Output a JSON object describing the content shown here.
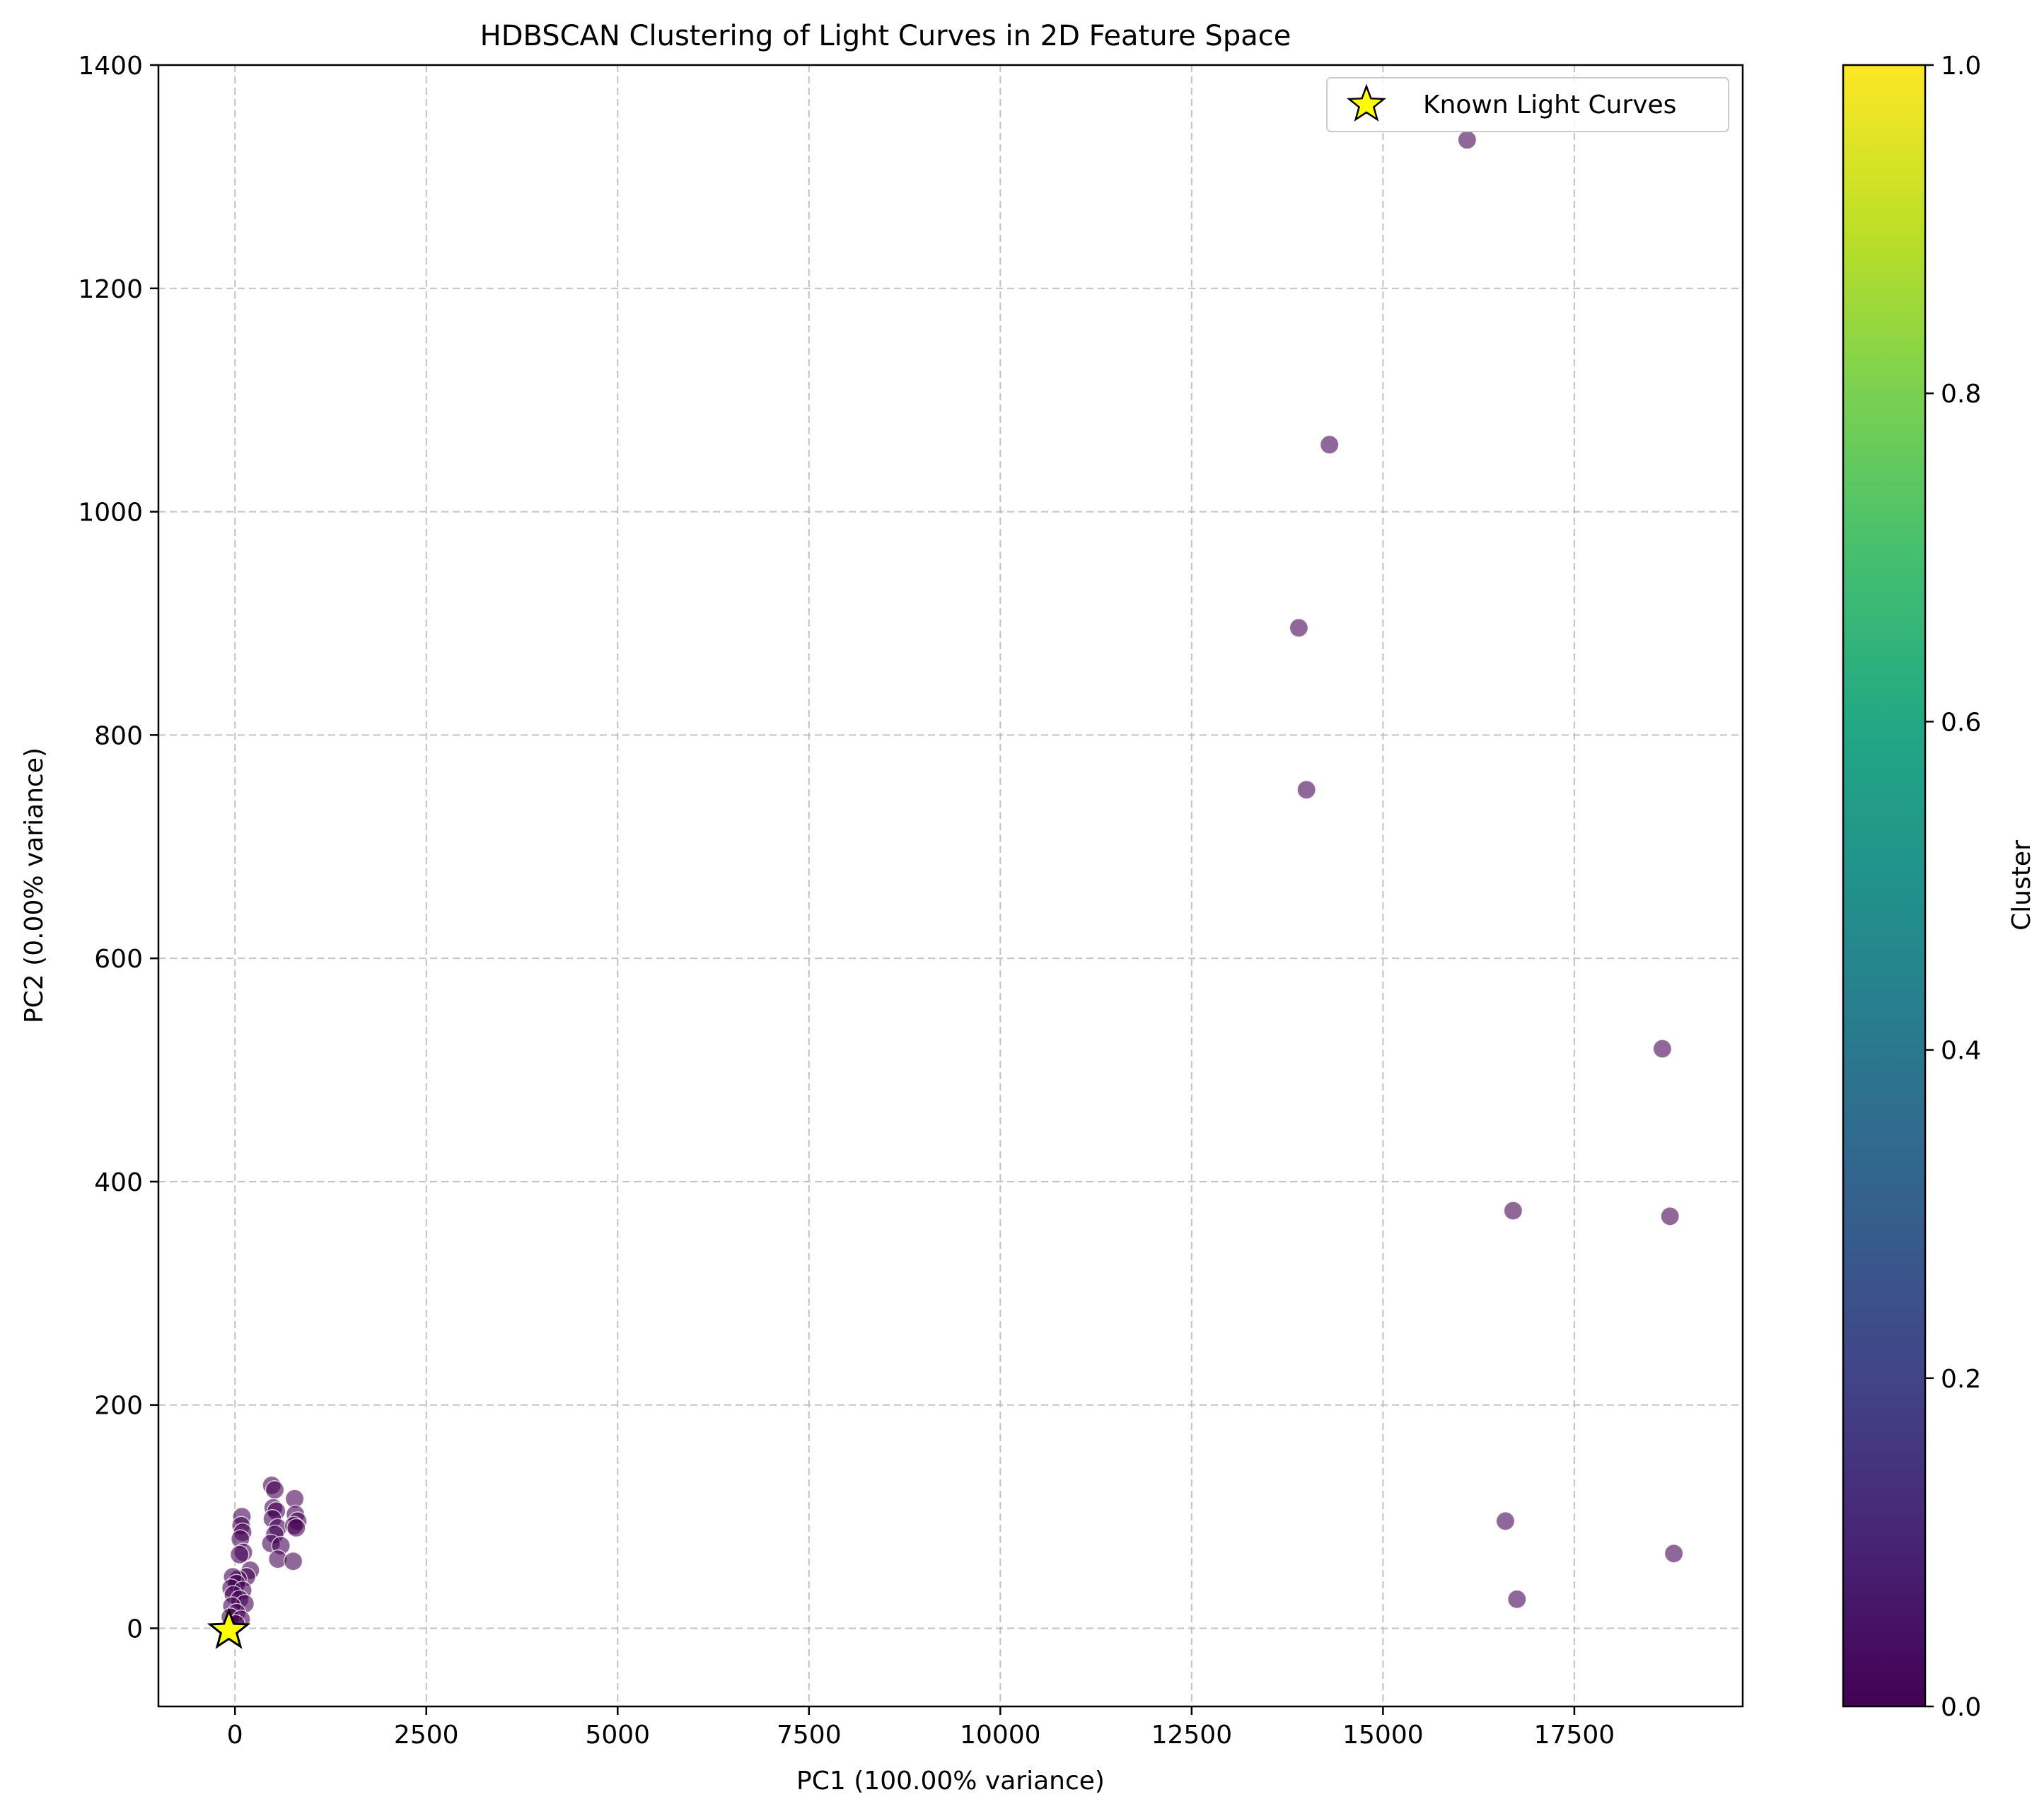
{
  "chart_data": {
    "type": "scatter",
    "title": "HDBSCAN Clustering of Light Curves in 2D Feature Space",
    "xlabel": "PC1 (100.00% variance)",
    "ylabel": "PC2 (0.00% variance)",
    "xlim": [
      -1000,
      19700
    ],
    "ylim": [
      -70,
      1400
    ],
    "xticks": [
      0,
      2500,
      5000,
      7500,
      10000,
      12500,
      15000,
      17500
    ],
    "yticks": [
      0,
      200,
      400,
      600,
      800,
      1000,
      1200,
      1400
    ],
    "grid": true,
    "legend_position": "top-right",
    "colormap": "viridis",
    "point_color": "#440154",
    "series": [
      {
        "name": "",
        "cluster_value": 0,
        "points": [
          [
            16100,
            1333
          ],
          [
            14300,
            1060
          ],
          [
            13900,
            896
          ],
          [
            14000,
            751
          ],
          [
            18650,
            519
          ],
          [
            16700,
            374
          ],
          [
            18750,
            369
          ],
          [
            16600,
            96
          ],
          [
            18800,
            67
          ],
          [
            16750,
            26
          ],
          [
            480,
            128
          ],
          [
            520,
            124
          ],
          [
            500,
            108
          ],
          [
            540,
            105
          ],
          [
            490,
            98
          ],
          [
            560,
            90
          ],
          [
            520,
            84
          ],
          [
            470,
            76
          ],
          [
            600,
            74
          ],
          [
            560,
            62
          ],
          [
            780,
            116
          ],
          [
            790,
            102
          ],
          [
            820,
            96
          ],
          [
            770,
            92
          ],
          [
            800,
            90
          ],
          [
            760,
            60
          ],
          [
            90,
            100
          ],
          [
            80,
            92
          ],
          [
            100,
            86
          ],
          [
            70,
            80
          ],
          [
            110,
            68
          ],
          [
            60,
            66
          ],
          [
            200,
            52
          ],
          [
            150,
            46
          ],
          [
            40,
            44
          ],
          [
            -30,
            46
          ],
          [
            20,
            40
          ],
          [
            -50,
            36
          ],
          [
            100,
            34
          ],
          [
            -20,
            30
          ],
          [
            60,
            26
          ],
          [
            130,
            22
          ],
          [
            -40,
            20
          ],
          [
            20,
            14
          ],
          [
            -60,
            10
          ],
          [
            80,
            8
          ],
          [
            10,
            4
          ]
        ]
      },
      {
        "name": "Known Light Curves",
        "marker": "star",
        "color": "#ffff00",
        "points": [
          [
            -80,
            -2
          ]
        ]
      }
    ],
    "colorbar": {
      "label": "Cluster",
      "range": [
        0.0,
        1.0
      ],
      "ticks": [
        "0.0",
        "0.2",
        "0.4",
        "0.6",
        "0.8",
        "1.0"
      ]
    }
  }
}
